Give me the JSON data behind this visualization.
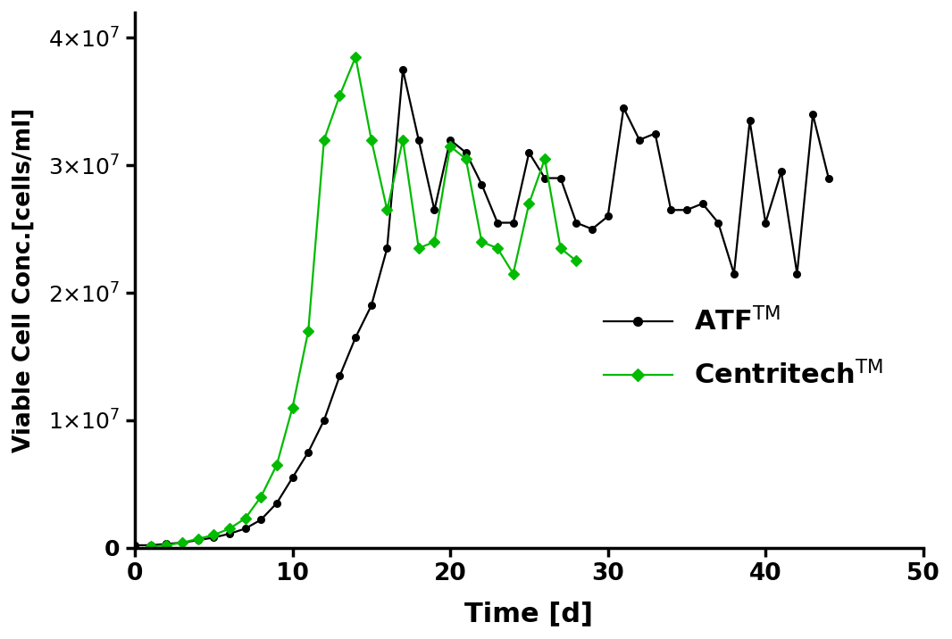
{
  "atf_x": [
    0,
    1,
    2,
    3,
    4,
    5,
    6,
    7,
    8,
    9,
    10,
    11,
    12,
    13,
    14,
    15,
    16,
    17,
    18,
    19,
    20,
    21,
    22,
    23,
    24,
    25,
    26,
    27,
    28,
    29,
    30,
    31,
    32,
    33,
    34,
    35,
    36,
    37,
    38,
    39,
    40,
    41,
    42,
    43,
    44
  ],
  "atf_y": [
    200000.0,
    200000.0,
    300000.0,
    400000.0,
    600000.0,
    800000.0,
    1100000.0,
    1500000.0,
    2200000.0,
    3500000.0,
    5500000.0,
    7500000.0,
    10000000.0,
    13500000.0,
    16500000.0,
    19000000.0,
    23500000.0,
    37500000.0,
    32000000.0,
    26500000.0,
    32000000.0,
    31000000.0,
    28500000.0,
    25500000.0,
    25500000.0,
    31000000.0,
    29000000.0,
    29000000.0,
    25500000.0,
    25000000.0,
    26000000.0,
    34500000.0,
    32000000.0,
    32500000.0,
    26500000.0,
    26500000.0,
    27000000.0,
    25500000.0,
    21500000.0,
    33500000.0,
    25500000.0,
    29500000.0,
    21500000.0,
    34000000.0,
    29000000.0
  ],
  "centritech_x": [
    1,
    2,
    3,
    4,
    5,
    6,
    7,
    8,
    9,
    10,
    11,
    12,
    13,
    14,
    15,
    16,
    17,
    18,
    19,
    20,
    21,
    22,
    23,
    24,
    25,
    26,
    27,
    28
  ],
  "centritech_y": [
    100000.0,
    200000.0,
    400000.0,
    700000.0,
    1000000.0,
    1500000.0,
    2300000.0,
    4000000.0,
    6500000.0,
    11000000.0,
    17000000.0,
    32000000.0,
    35500000.0,
    38500000.0,
    32000000.0,
    26500000.0,
    32000000.0,
    23500000.0,
    24000000.0,
    31500000.0,
    30500000.0,
    24000000.0,
    23500000.0,
    21500000.0,
    27000000.0,
    30500000.0,
    23500000.0,
    22500000.0
  ],
  "atf_color": "#000000",
  "centritech_color": "#00bb00",
  "ylabel": "Viable Cell Conc.[cells/ml]",
  "xlabel": "Time [d]",
  "xlim": [
    0,
    50
  ],
  "ylim": [
    0,
    42000000.0
  ],
  "yticks": [
    0,
    10000000.0,
    20000000.0,
    30000000.0,
    40000000.0
  ],
  "xticks": [
    0,
    10,
    20,
    30,
    40,
    50
  ],
  "background_color": "#ffffff"
}
